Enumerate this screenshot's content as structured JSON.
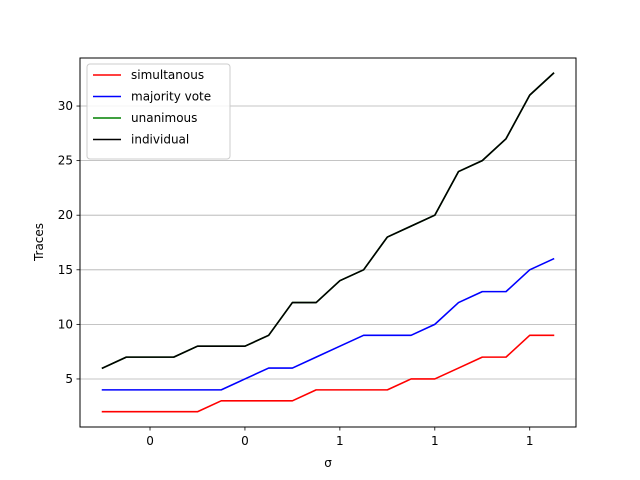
{
  "chart_data": {
    "type": "line",
    "xlabel": "σ",
    "ylabel": "Traces",
    "x": [
      0,
      1,
      2,
      3,
      4,
      5,
      6,
      7,
      8,
      9,
      10,
      11,
      12,
      13,
      14,
      15,
      16,
      17,
      18,
      19
    ],
    "x_ticks": [
      {
        "pos": 2,
        "label": "0"
      },
      {
        "pos": 6,
        "label": "0"
      },
      {
        "pos": 10,
        "label": "1"
      },
      {
        "pos": 14,
        "label": "1"
      },
      {
        "pos": 18,
        "label": "1"
      }
    ],
    "y_ticks": [
      5,
      10,
      15,
      20,
      25,
      30
    ],
    "ylim": [
      0.6,
      34.4
    ],
    "xlim": [
      -0.95,
      19.95
    ],
    "grid": "y",
    "legend_position": "upper-left",
    "series": [
      {
        "name": "simultanous",
        "color": "#ff0000",
        "values": [
          2,
          2,
          2,
          2,
          2,
          3,
          3,
          3,
          3,
          4,
          4,
          4,
          4,
          5,
          5,
          6,
          7,
          7,
          9,
          9
        ]
      },
      {
        "name": "majority vote",
        "color": "#0000ff",
        "values": [
          4,
          4,
          4,
          4,
          4,
          4,
          5,
          6,
          6,
          7,
          8,
          9,
          9,
          9,
          10,
          12,
          13,
          13,
          15,
          16
        ]
      },
      {
        "name": "unanimous",
        "color": "#008000",
        "values": [
          6,
          7,
          7,
          7,
          8,
          8,
          8,
          9,
          12,
          12,
          14,
          15,
          18,
          19,
          20,
          24,
          25,
          27,
          31,
          33
        ]
      },
      {
        "name": "individual",
        "color": "#000000",
        "values": [
          6,
          7,
          7,
          7,
          8,
          8,
          8,
          9,
          12,
          12,
          14,
          15,
          18,
          19,
          20,
          24,
          25,
          27,
          31,
          33
        ]
      }
    ]
  }
}
